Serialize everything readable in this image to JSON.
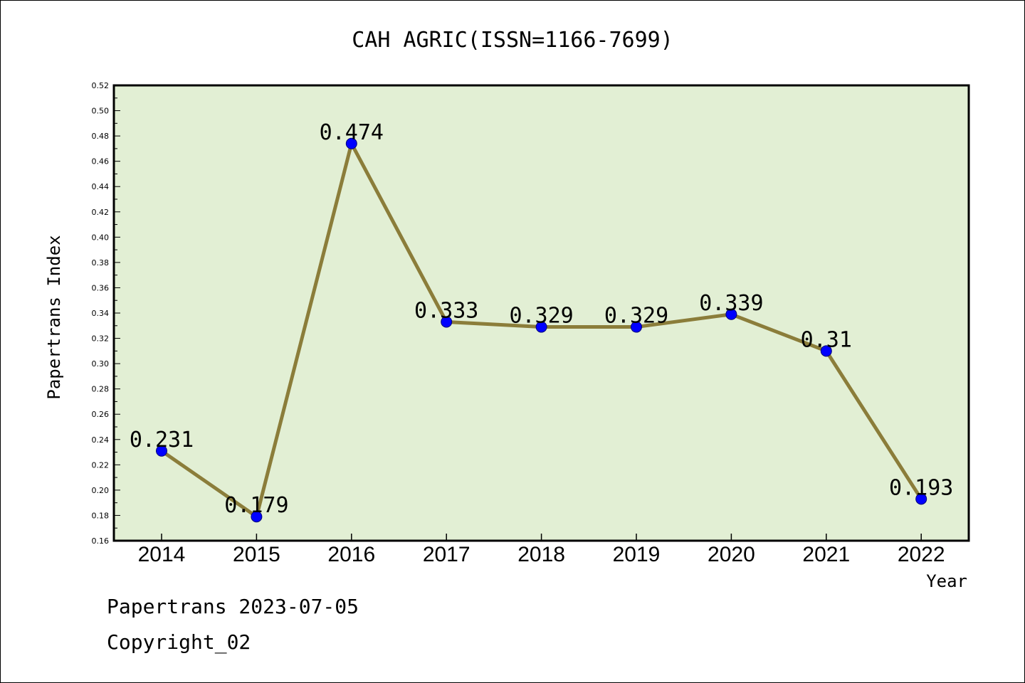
{
  "chart_data": {
    "type": "line",
    "title": "CAH AGRIC(ISSN=1166-7699)",
    "xlabel": "Year",
    "ylabel": "Papertrans Index",
    "categories": [
      "2014",
      "2015",
      "2016",
      "2017",
      "2018",
      "2019",
      "2020",
      "2021",
      "2022"
    ],
    "values": [
      0.231,
      0.179,
      0.474,
      0.333,
      0.329,
      0.329,
      0.339,
      0.31,
      0.193
    ],
    "data_labels": [
      "0.231",
      "0.179",
      "0.474",
      "0.333",
      "0.329",
      "0.329",
      "0.339",
      "0.31",
      "0.193"
    ],
    "ylim": [
      0.16,
      0.52
    ],
    "yticks": [
      "0.16",
      "0.18",
      "0.20",
      "0.22",
      "0.24",
      "0.26",
      "0.28",
      "0.30",
      "0.32",
      "0.34",
      "0.36",
      "0.38",
      "0.40",
      "0.42",
      "0.44",
      "0.46",
      "0.48",
      "0.50",
      "0.52"
    ],
    "grid": false,
    "colors": {
      "plot_background": "#e2efd4",
      "line": "#8b7d3a",
      "marker": "#0000ff"
    }
  },
  "footer": {
    "date_line": "Papertrans 2023-07-05",
    "copyright": "Copyright_02"
  }
}
